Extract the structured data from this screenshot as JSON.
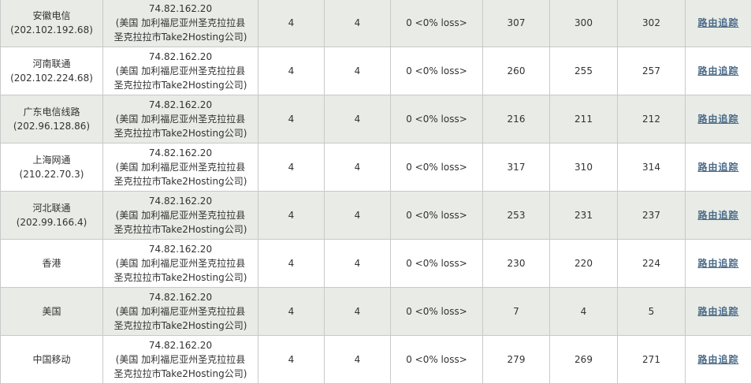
{
  "rows": [
    {
      "node_name": "安徽电信",
      "node_ip": "(202.102.192.68)",
      "target_ip": "74.82.162.20",
      "location_1": "(美国 加利福尼亚州圣克拉拉县",
      "location_2": "圣克拉拉市Take2Hosting公司)",
      "sent": "4",
      "received": "4",
      "loss": "0 <0% loss>",
      "max": "307",
      "min": "300",
      "avg": "302",
      "trace_label": "路由追踪"
    },
    {
      "node_name": "河南联通",
      "node_ip": "(202.102.224.68)",
      "target_ip": "74.82.162.20",
      "location_1": "(美国 加利福尼亚州圣克拉拉县",
      "location_2": "圣克拉拉市Take2Hosting公司)",
      "sent": "4",
      "received": "4",
      "loss": "0 <0% loss>",
      "max": "260",
      "min": "255",
      "avg": "257",
      "trace_label": "路由追踪"
    },
    {
      "node_name": "广东电信线路",
      "node_ip": "(202.96.128.86)",
      "target_ip": "74.82.162.20",
      "location_1": "(美国 加利福尼亚州圣克拉拉县",
      "location_2": "圣克拉拉市Take2Hosting公司)",
      "sent": "4",
      "received": "4",
      "loss": "0 <0% loss>",
      "max": "216",
      "min": "211",
      "avg": "212",
      "trace_label": "路由追踪"
    },
    {
      "node_name": "上海网通",
      "node_ip": "(210.22.70.3)",
      "target_ip": "74.82.162.20",
      "location_1": "(美国 加利福尼亚州圣克拉拉县",
      "location_2": "圣克拉拉市Take2Hosting公司)",
      "sent": "4",
      "received": "4",
      "loss": "0 <0% loss>",
      "max": "317",
      "min": "310",
      "avg": "314",
      "trace_label": "路由追踪"
    },
    {
      "node_name": "河北联通",
      "node_ip": "(202.99.166.4)",
      "target_ip": "74.82.162.20",
      "location_1": "(美国 加利福尼亚州圣克拉拉县",
      "location_2": "圣克拉拉市Take2Hosting公司)",
      "sent": "4",
      "received": "4",
      "loss": "0 <0% loss>",
      "max": "253",
      "min": "231",
      "avg": "237",
      "trace_label": "路由追踪"
    },
    {
      "node_name": "香港",
      "node_ip": "",
      "target_ip": "74.82.162.20",
      "location_1": "(美国 加利福尼亚州圣克拉拉县",
      "location_2": "圣克拉拉市Take2Hosting公司)",
      "sent": "4",
      "received": "4",
      "loss": "0 <0% loss>",
      "max": "230",
      "min": "220",
      "avg": "224",
      "trace_label": "路由追踪"
    },
    {
      "node_name": "美国",
      "node_ip": "",
      "target_ip": "74.82.162.20",
      "location_1": "(美国 加利福尼亚州圣克拉拉县",
      "location_2": "圣克拉拉市Take2Hosting公司)",
      "sent": "4",
      "received": "4",
      "loss": "0 <0% loss>",
      "max": "7",
      "min": "4",
      "avg": "5",
      "trace_label": "路由追踪"
    },
    {
      "node_name": "中国移动",
      "node_ip": "",
      "target_ip": "74.82.162.20",
      "location_1": "(美国 加利福尼亚州圣克拉拉县",
      "location_2": "圣克拉拉市Take2Hosting公司)",
      "sent": "4",
      "received": "4",
      "loss": "0 <0% loss>",
      "max": "279",
      "min": "269",
      "avg": "271",
      "trace_label": "路由追踪"
    }
  ],
  "colors": {
    "row_shaded": "#e8ebe6",
    "row_plain": "#ffffff",
    "grid_line": "#c9c9c9",
    "link": "#4a6a88"
  }
}
